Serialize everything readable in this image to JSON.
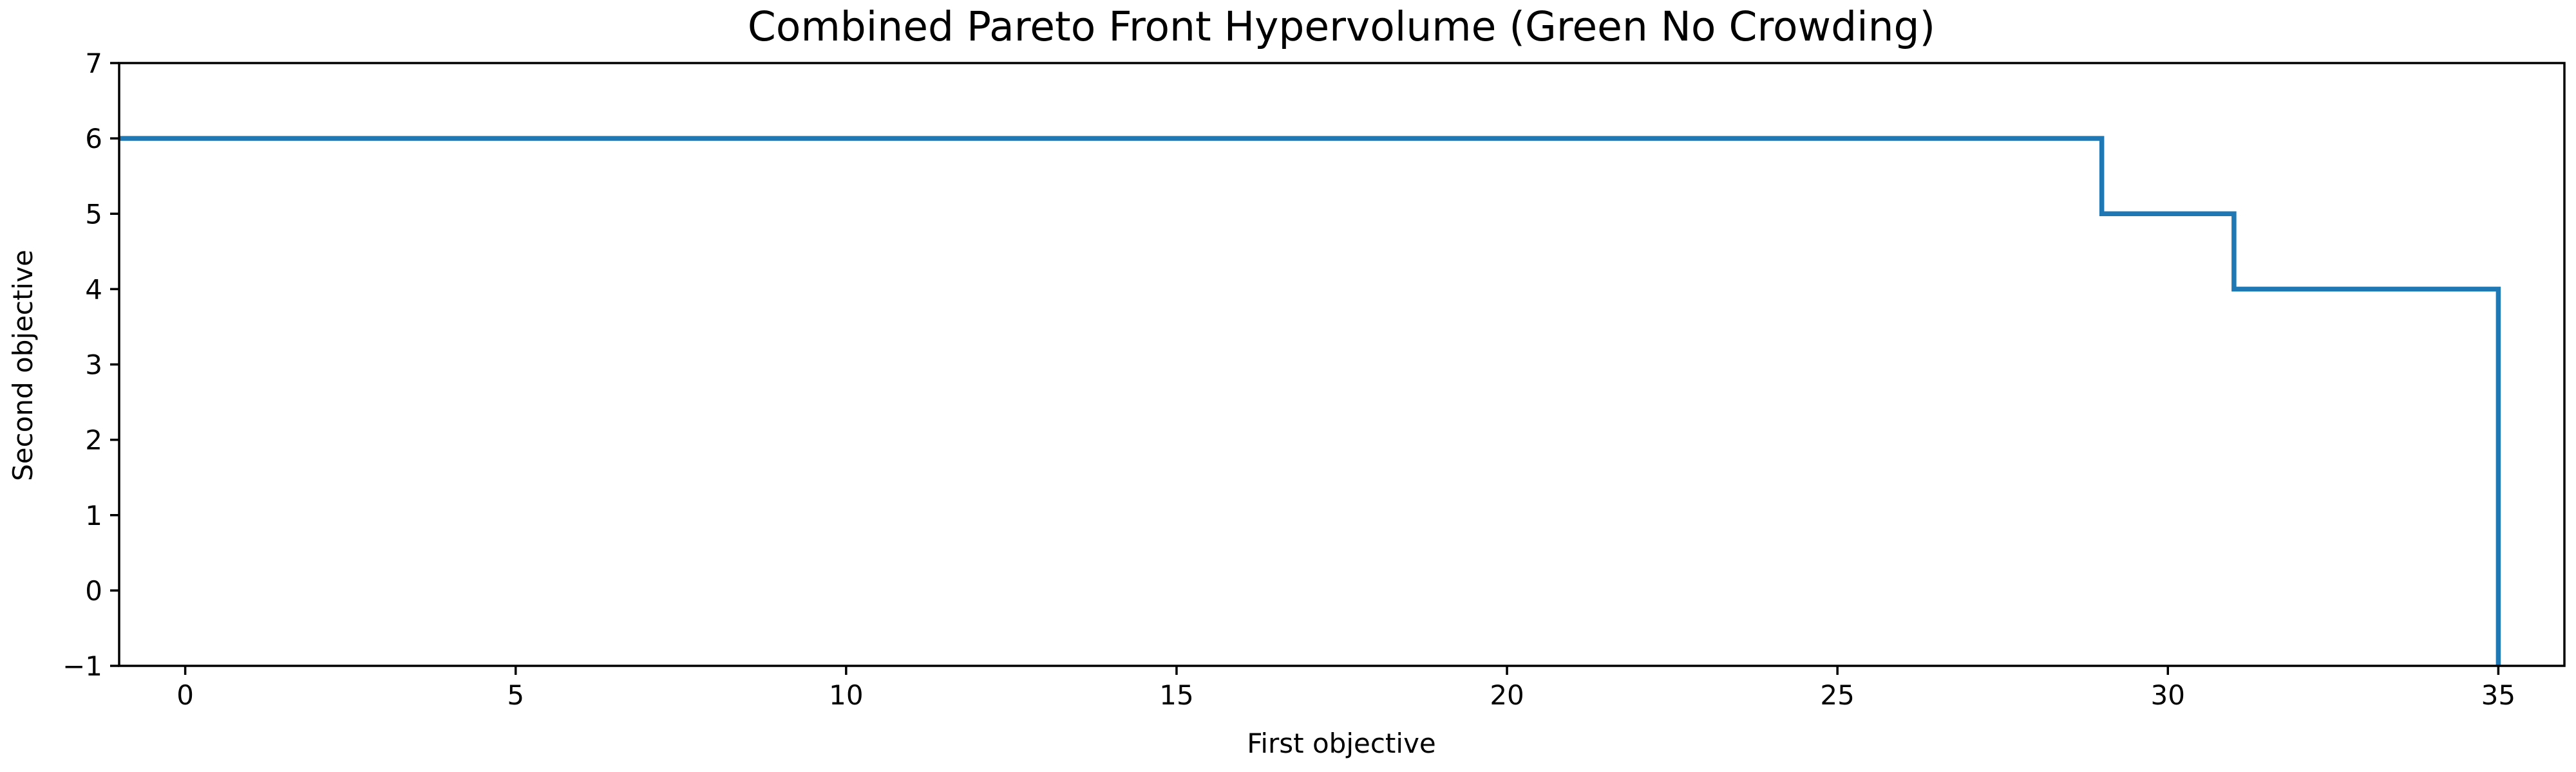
{
  "chart_data": {
    "type": "line",
    "drawstyle": "steps-post",
    "title": "Combined Pareto Front Hypervolume (Green No Crowding)",
    "xlabel": "First objective",
    "ylabel": "Second objective",
    "xlim": [
      -1,
      36
    ],
    "ylim": [
      -1,
      7
    ],
    "xticks": [
      0,
      5,
      10,
      15,
      20,
      25,
      30,
      35
    ],
    "yticks": [
      -1,
      0,
      1,
      2,
      3,
      4,
      5,
      6,
      7
    ],
    "xtick_labels": [
      "0",
      "5",
      "10",
      "15",
      "20",
      "25",
      "30",
      "35"
    ],
    "ytick_labels": [
      "−1",
      "0",
      "1",
      "2",
      "3",
      "4",
      "5",
      "6",
      "7"
    ],
    "grid": false,
    "legend": "none",
    "series": [
      {
        "color": "#1f77b4",
        "x": [
          -1,
          29,
          31,
          35,
          35
        ],
        "y": [
          6,
          5,
          4,
          4,
          -1
        ]
      }
    ]
  }
}
